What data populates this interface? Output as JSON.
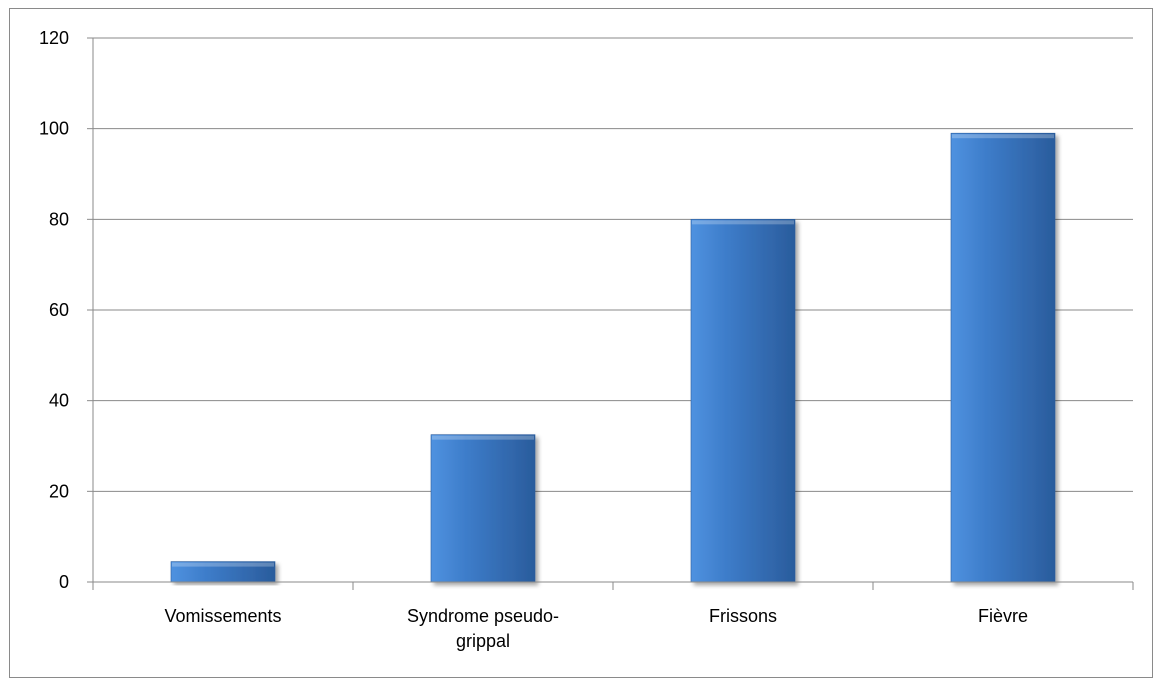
{
  "chart_data": {
    "type": "bar",
    "categories": [
      "Vomissements",
      "Syndrome pseudo-grippal",
      "Frissons",
      "Fièvre"
    ],
    "category_label_lines": [
      [
        "Vomissements"
      ],
      [
        "Syndrome pseudo-",
        "grippal"
      ],
      [
        "Frissons"
      ],
      [
        "Fièvre"
      ]
    ],
    "values": [
      4.5,
      32.5,
      80,
      99
    ],
    "yticks": [
      0,
      20,
      40,
      60,
      80,
      100,
      120
    ],
    "ylim": [
      0,
      120
    ],
    "grid": true,
    "bar_color": "#3d7cc9",
    "bar_color_light": "#4f92e0",
    "bar_color_dark": "#2a5c9c",
    "gridline_color": "#8a8a8a"
  }
}
